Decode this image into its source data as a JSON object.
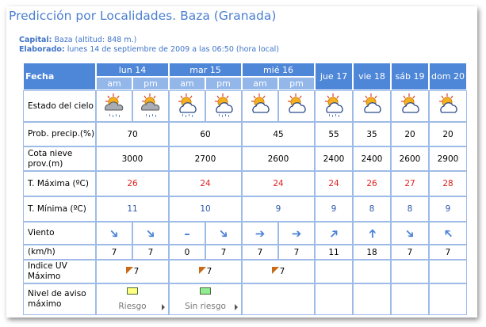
{
  "title": "Predicción por Localidades. Baza (Granada)",
  "capital_label": "Capital:",
  "capital_value": "Baza (altitud: 848 m.)",
  "elaborado_label": "Elaborado:",
  "elaborado_value": "lunes 14 de septiembre de 2009 a las 06:50 (hora local)",
  "header": {
    "fecha": "Fecha",
    "days": [
      "lun 14",
      "mar 15",
      "mié 16",
      "jue 17",
      "vie 18",
      "sáb 19",
      "dom 20"
    ],
    "am": "am",
    "pm": "pm"
  },
  "rows": {
    "estado": "Estado del cielo",
    "sky_icons": [
      "cloudy-sun-rain-icon",
      "cloudy-sun-rain-icon",
      "sun-cloud-rain-icon",
      "sun-cloud-rain-icon",
      "sun-cloud-icon",
      "sun-cloud-icon",
      "sun-cloud-rain-icon",
      "sun-cloud-icon",
      "sun-cloud-icon",
      "sun-cloud-icon"
    ],
    "prob_label": "Prob. precip.(%)",
    "prob": [
      "70",
      "60",
      "45",
      "55",
      "35",
      "20",
      "20"
    ],
    "cota_label": "Cota nieve prov.(m)",
    "cota": [
      "3000",
      "2700",
      "2600",
      "2400",
      "2400",
      "2600",
      "2900"
    ],
    "tmax_label": "T. Máxima (ºC)",
    "tmax": [
      "26",
      "24",
      "24",
      "24",
      "26",
      "27",
      "28"
    ],
    "tmin_label": "T. Mínima (ºC)",
    "tmin": [
      "11",
      "10",
      "9",
      "9",
      "8",
      "8",
      "9"
    ],
    "viento_label": "Viento",
    "viento_dirs": [
      "SE",
      "SE",
      "calm",
      "SE",
      "E",
      "E",
      "NE",
      "N",
      "SE",
      "NW"
    ],
    "kmh_label": "(km/h)",
    "kmh": [
      "7",
      "7",
      "0",
      "7",
      "7",
      "7",
      "11",
      "18",
      "7",
      "7"
    ],
    "uv_label": "Indice UV Máximo",
    "uv": [
      "7",
      "7",
      "7"
    ],
    "aviso_label": "Nivel de aviso máximo",
    "aviso": [
      {
        "text": "Riesgo",
        "color": "#ffff80"
      },
      {
        "text": "Sin riesgo",
        "color": "#90ee90"
      }
    ]
  },
  "colors": {
    "accent": "#4e86d8",
    "sub_header": "#94b7ea",
    "tmax": "#e02020",
    "tmin": "#2a58a8"
  }
}
